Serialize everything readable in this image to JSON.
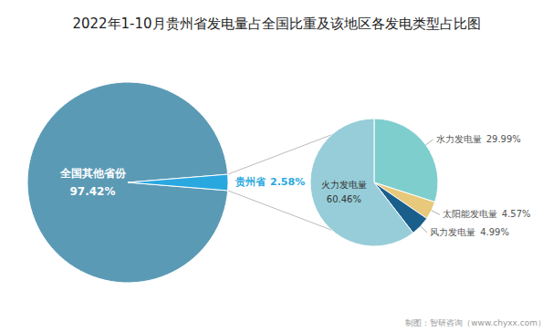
{
  "chart_data": [
    {
      "type": "pie",
      "title": "2022年1-10月贵州省发电量占全国比重及该地区各发电类型占比图",
      "categories": [
        "全国其他省份",
        "贵州省"
      ],
      "values": [
        97.42,
        2.58
      ],
      "value_labels": [
        "97.42%",
        "2.58%"
      ],
      "colors": [
        "#5b9ab5",
        "#29a8e0"
      ],
      "data_labels": true,
      "annotations": [
        "制图：智研咨询（www.chyxx.com）"
      ]
    },
    {
      "type": "pie",
      "categories": [
        "水力发电量",
        "太阳能发电量",
        "风力发电量",
        "火力发电量"
      ],
      "values": [
        29.99,
        4.57,
        4.99,
        60.46
      ],
      "value_labels": [
        "29.99%",
        "4.57%",
        "4.99%",
        "60.46%"
      ],
      "colors": [
        "#7ecece",
        "#e8c87a",
        "#1a5f8c",
        "#96cdd8"
      ],
      "data_labels": true
    }
  ]
}
